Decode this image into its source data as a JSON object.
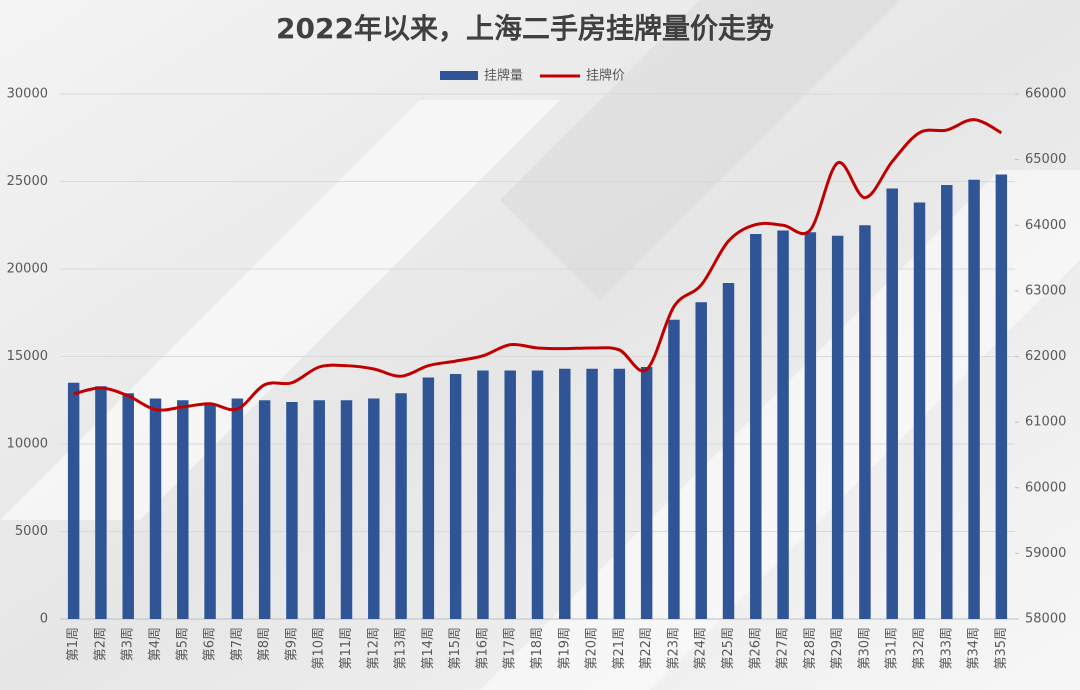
{
  "chart_data": {
    "type": "bar_line",
    "title": "2022年以来，上海二手房挂牌量价走势",
    "categories": [
      "第1周",
      "第2周",
      "第3周",
      "第4周",
      "第5周",
      "第6周",
      "第7周",
      "第8周",
      "第9周",
      "第10周",
      "第11周",
      "第12周",
      "第13周",
      "第14周",
      "第15周",
      "第16周",
      "第17周",
      "第18周",
      "第19周",
      "第20周",
      "第21周",
      "第22周",
      "第23周",
      "第24周",
      "第25周",
      "第26周",
      "第27周",
      "第28周",
      "第29周",
      "第30周",
      "第31周",
      "第32周",
      "第33周",
      "第34周",
      "第35周"
    ],
    "series": [
      {
        "name": "挂牌量",
        "type": "bar",
        "color": "#2f5597",
        "values": [
          13500,
          13300,
          12900,
          12600,
          12500,
          12300,
          12600,
          12500,
          12400,
          12500,
          12500,
          12600,
          12900,
          13800,
          14000,
          14200,
          14200,
          14200,
          14300,
          14300,
          14300,
          14400,
          17100,
          18100,
          19200,
          22000,
          22200,
          22100,
          21900,
          22500,
          24600,
          23800,
          24800,
          25100,
          25400
        ]
      },
      {
        "name": "挂牌价",
        "type": "line",
        "color": "#c00000",
        "axis": "y2",
        "values": [
          61430,
          61520,
          61400,
          61190,
          61230,
          61280,
          61200,
          61570,
          61600,
          61840,
          61860,
          61810,
          61700,
          61860,
          61930,
          62010,
          62180,
          62130,
          62120,
          62130,
          62100,
          61800,
          62760,
          63090,
          63760,
          64010,
          64000,
          63930,
          64950,
          64420,
          64970,
          65410,
          65450,
          65610,
          65410
        ]
      }
    ],
    "ylim": [
      0,
      30000
    ],
    "yticks": [
      0,
      5000,
      10000,
      15000,
      20000,
      25000,
      30000
    ],
    "y2lim": [
      58000,
      66000
    ],
    "y2ticks": [
      58000,
      59000,
      60000,
      61000,
      62000,
      63000,
      64000,
      65000,
      66000
    ],
    "grid": true,
    "legend": "top"
  }
}
